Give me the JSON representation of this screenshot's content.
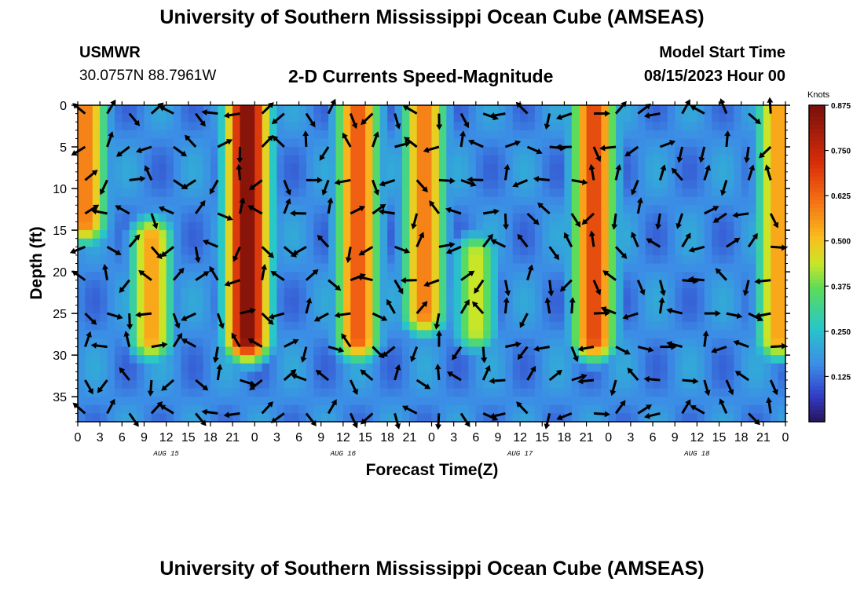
{
  "header": {
    "title": "University of Southern Mississippi Ocean Cube (AMSEAS)",
    "station_name": "USMWR",
    "coordinates": "30.0757N  88.7961W",
    "subtitle": "2-D Currents Speed-Magnitude",
    "model_start_label": "Model Start Time",
    "model_start_value": "08/15/2023 Hour 00"
  },
  "footer": {
    "title": "University of Southern Mississippi Ocean Cube (AMSEAS)"
  },
  "chart_data": {
    "type": "heatmap",
    "title": "2-D Currents Speed-Magnitude",
    "xlabel": "Forecast Time(Z)",
    "ylabel": "Depth (ft)",
    "x_range_hours": [
      0,
      96
    ],
    "y_range_ft": [
      0,
      38
    ],
    "x_ticks": [
      "0",
      "3",
      "6",
      "9",
      "12",
      "15",
      "18",
      "21",
      "0",
      "3",
      "6",
      "9",
      "12",
      "15",
      "18",
      "21",
      "0",
      "3",
      "6",
      "9",
      "12",
      "15",
      "18",
      "21",
      "0",
      "3",
      "6",
      "9",
      "12",
      "15",
      "18",
      "21",
      "0"
    ],
    "y_ticks": [
      0,
      5,
      10,
      15,
      20,
      25,
      30,
      35
    ],
    "day_labels": [
      {
        "label": "AUG 15",
        "hour": 12
      },
      {
        "label": "AUG 16",
        "hour": 36
      },
      {
        "label": "AUG 17",
        "hour": 60
      },
      {
        "label": "AUG 18",
        "hour": 84
      }
    ],
    "colorbar": {
      "unit": "Knots",
      "min": 0,
      "max": 0.875,
      "ticks": [
        "0.875",
        "0.750",
        "0.625",
        "0.500",
        "0.375",
        "0.250",
        "0.125"
      ],
      "tick_values": [
        0.875,
        0.75,
        0.625,
        0.5,
        0.375,
        0.25,
        0.125
      ]
    },
    "speed_features": [
      {
        "hour": 1,
        "top_ft": 0,
        "bottom_ft": 14,
        "peak": 0.6
      },
      {
        "hour": 10,
        "top_ft": 16,
        "bottom_ft": 28,
        "peak": 0.55
      },
      {
        "hour": 23,
        "top_ft": 0,
        "bottom_ft": 28,
        "peak": 0.87
      },
      {
        "hour": 38,
        "top_ft": 0,
        "bottom_ft": 28,
        "peak": 0.65
      },
      {
        "hour": 47,
        "top_ft": 0,
        "bottom_ft": 25,
        "peak": 0.6
      },
      {
        "hour": 54,
        "top_ft": 18,
        "bottom_ft": 27,
        "peak": 0.45
      },
      {
        "hour": 70,
        "top_ft": 0,
        "bottom_ft": 28,
        "peak": 0.68
      },
      {
        "hour": 95,
        "top_ft": 0,
        "bottom_ft": 28,
        "peak": 0.55
      }
    ],
    "vector_grid": {
      "hour_step": 3,
      "depth_step_ft": 4
    }
  }
}
